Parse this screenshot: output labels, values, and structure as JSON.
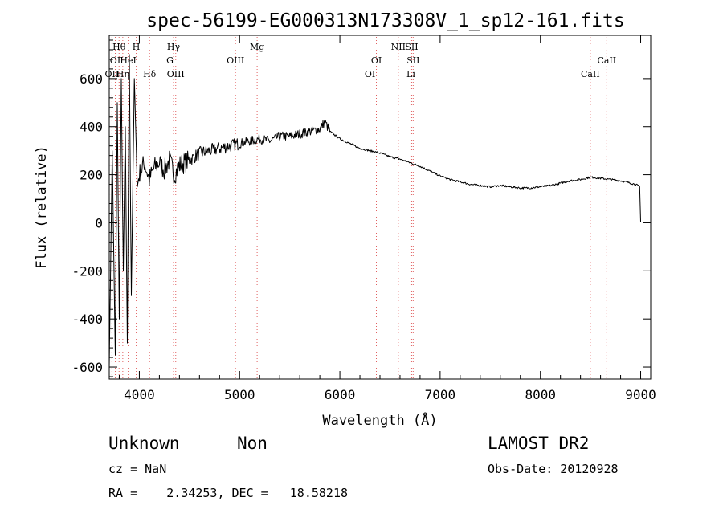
{
  "chart_data": {
    "type": "line",
    "title": "spec-56199-EG000313N173308V_1_sp12-161.fits",
    "xlabel": "Wavelength (Å)",
    "ylabel": "Flux (relative)",
    "xlim": [
      3700,
      9100
    ],
    "ylim": [
      -650,
      780
    ],
    "x_ticks": [
      4000,
      5000,
      6000,
      7000,
      8000,
      9000
    ],
    "y_ticks": [
      -600,
      -400,
      -200,
      0,
      200,
      400,
      600
    ],
    "grid": false,
    "lines": [
      {
        "label": "Hθ",
        "wavelength": 3798,
        "row": 0
      },
      {
        "label": "OI",
        "wavelength": 3760,
        "row": 1
      },
      {
        "label": "OII",
        "wavelength": 3727,
        "row": 2
      },
      {
        "label": "H",
        "wavelength": 3969,
        "row": 0
      },
      {
        "label": "HeI",
        "wavelength": 3889,
        "row": 1
      },
      {
        "label": "Hη",
        "wavelength": 3835,
        "row": 2
      },
      {
        "label": "Hδ",
        "wavelength": 4102,
        "row": 2
      },
      {
        "label": "Hγ",
        "wavelength": 4341,
        "row": 0
      },
      {
        "label": "G",
        "wavelength": 4305,
        "row": 1
      },
      {
        "label": "OIII",
        "wavelength": 4363,
        "row": 2
      },
      {
        "label": "OIII",
        "wavelength": 4959,
        "row": 1
      },
      {
        "label": "Mg",
        "wavelength": 5175,
        "row": 0
      },
      {
        "label": "OI",
        "wavelength": 6364,
        "row": 1
      },
      {
        "label": "OI",
        "wavelength": 6300,
        "row": 2
      },
      {
        "label": "NII",
        "wavelength": 6583,
        "row": 0
      },
      {
        "label": "SII",
        "wavelength": 6716,
        "row": 0
      },
      {
        "label": "SII",
        "wavelength": 6731,
        "row": 1
      },
      {
        "label": "Li",
        "wavelength": 6708,
        "row": 2
      },
      {
        "label": "CaII",
        "wavelength": 8662,
        "row": 1
      },
      {
        "label": "CaII",
        "wavelength": 8498,
        "row": 2
      }
    ],
    "series": [
      {
        "name": "spectrum",
        "x": [
          3700,
          3730,
          3760,
          3780,
          3800,
          3820,
          3840,
          3860,
          3880,
          3900,
          3920,
          3950,
          3980,
          4000,
          4050,
          4100,
          4150,
          4200,
          4250,
          4300,
          4350,
          4400,
          4500,
          4600,
          4700,
          4800,
          4900,
          5000,
          5100,
          5200,
          5300,
          5400,
          5500,
          5600,
          5700,
          5800,
          5850,
          5900,
          6000,
          6100,
          6200,
          6300,
          6400,
          6500,
          6600,
          6700,
          6800,
          6900,
          7000,
          7100,
          7200,
          7300,
          7400,
          7500,
          7600,
          7700,
          7800,
          7900,
          8000,
          8100,
          8200,
          8300,
          8400,
          8500,
          8600,
          8700,
          8800,
          8900,
          8950,
          8990,
          9000
        ],
        "y": [
          -600,
          300,
          -550,
          500,
          -400,
          600,
          -200,
          400,
          -500,
          700,
          -300,
          600,
          150,
          200,
          250,
          180,
          230,
          250,
          220,
          260,
          200,
          240,
          260,
          290,
          300,
          310,
          320,
          330,
          340,
          350,
          340,
          360,
          360,
          370,
          380,
          390,
          420,
          380,
          350,
          330,
          310,
          300,
          290,
          275,
          265,
          250,
          235,
          215,
          195,
          180,
          170,
          160,
          155,
          150,
          155,
          150,
          145,
          145,
          150,
          155,
          165,
          175,
          180,
          190,
          185,
          180,
          175,
          165,
          160,
          150,
          5
        ]
      }
    ]
  },
  "info": {
    "class_label": "Unknown",
    "subclass_label": "Non",
    "survey": "LAMOST DR2",
    "cz_text": "cz = NaN",
    "obs_date_text": "Obs-Date: 20120928",
    "ra_dec_text": "RA =    2.34253, DEC =   18.58218"
  }
}
